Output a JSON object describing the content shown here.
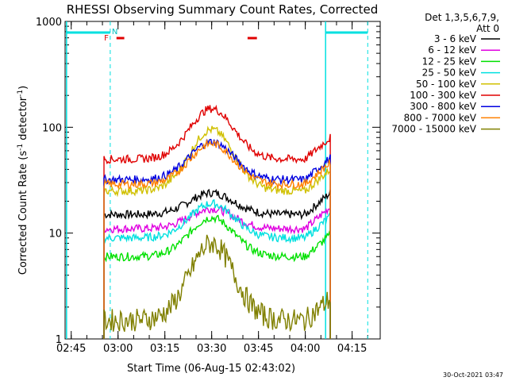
{
  "chart_data": {
    "type": "line",
    "title": "RHESSI Observing Summary Count Rates, Corrected",
    "xlabel": "Start Time (06-Aug-15 02:43:02)",
    "ylabel": "Corrected Count Rate (s⁻¹ detector⁻¹)",
    "ylabel_main": "Corrected Count Rate (s",
    "ylabel_sup1": "-1",
    "ylabel_mid": " detector",
    "ylabel_sup2": "-1",
    "ylabel_end": ")",
    "yscale": "log",
    "ylim": [
      1,
      1000
    ],
    "xlim": [
      "02:43:02",
      "04:24:00"
    ],
    "x_tick_labels": [
      "02:45",
      "03:00",
      "03:15",
      "03:30",
      "03:45",
      "04:00",
      "04:15"
    ],
    "y_tick_labels": [
      "1",
      "10",
      "100",
      "1000"
    ],
    "legend_title_line1": "Det 1,3,5,6,7,9,",
    "legend_title_line2": "Att 0",
    "legend_placement": "right",
    "flags": {
      "n_label": "N",
      "f_label": "F"
    },
    "timestamp": "30-Oct-2021 03:47",
    "series": [
      {
        "name": "3 - 6 keV",
        "color": "#000000",
        "baseline": 15,
        "peak": 24
      },
      {
        "name": "6 - 12 keV",
        "color": "#e000e0",
        "baseline": 11,
        "peak": 17
      },
      {
        "name": "12 - 25 keV",
        "color": "#00e000",
        "baseline": 6,
        "peak": 14
      },
      {
        "name": "25 - 50 keV",
        "color": "#00e0e0",
        "baseline": 9,
        "peak": 19
      },
      {
        "name": "50 - 100 keV",
        "color": "#d0c000",
        "baseline": 25,
        "peak": 95
      },
      {
        "name": "100 - 300 keV",
        "color": "#e00000",
        "baseline": 50,
        "peak": 150
      },
      {
        "name": "300 - 800 keV",
        "color": "#0000e0",
        "baseline": 32,
        "peak": 73
      },
      {
        "name": "800 - 7000 keV",
        "color": "#ff8000",
        "baseline": 29,
        "peak": 70
      },
      {
        "name": "7000 - 15000 keV",
        "color": "#808000",
        "baseline": 1.5,
        "peak": 8
      }
    ]
  }
}
